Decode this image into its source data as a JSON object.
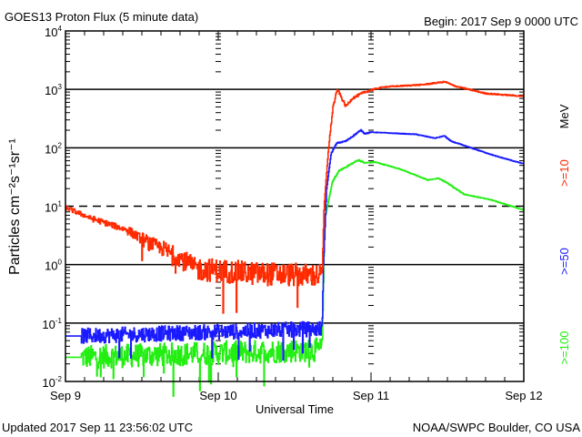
{
  "header": {
    "title": "GOES13 Proton Flux (5 minute data)",
    "begin": "Begin: 2017 Sep 9 0000 UTC"
  },
  "footer": {
    "updated": "Updated 2017 Sep 11 23:56:02 UTC",
    "credit": "NOAA/SWPC Boulder, CO USA"
  },
  "chart_data": {
    "type": "line",
    "title": "GOES13 Proton Flux (5 minute data)",
    "xlabel": "Universal Time",
    "ylabel": "Particles cm⁻²s⁻¹sr⁻¹",
    "x_units": "hours since 2017 Sep 9 0000 UTC",
    "xlim": [
      0,
      72
    ],
    "ylim": [
      0.01,
      10000
    ],
    "yscale": "log",
    "x_ticks": [
      {
        "hour": 0,
        "label": "Sep 9"
      },
      {
        "hour": 24,
        "label": "Sep 10"
      },
      {
        "hour": 48,
        "label": "Sep 11"
      },
      {
        "hour": 72,
        "label": "Sep 12"
      }
    ],
    "y_ticks": [
      {
        "value": 10000,
        "base": "10",
        "exp": "4"
      },
      {
        "value": 1000,
        "base": "10",
        "exp": "3"
      },
      {
        "value": 100,
        "base": "10",
        "exp": "2"
      },
      {
        "value": 10,
        "base": "10",
        "exp": "1"
      },
      {
        "value": 1,
        "base": "10",
        "exp": "0"
      },
      {
        "value": 0.1,
        "base": "10",
        "exp": "-1"
      },
      {
        "value": 0.01,
        "base": "10",
        "exp": "-2"
      }
    ],
    "gridlines": {
      "solid": [
        1000,
        100,
        1,
        0.1
      ],
      "dashed": [
        10
      ]
    },
    "unit_label": "MeV",
    "legend_placement": "right",
    "series": [
      {
        "name": ">=10",
        "color": "#ff2a00",
        "points": [
          [
            0,
            9.5,
            0.04
          ],
          [
            4,
            6.2,
            0.05
          ],
          [
            9.7,
            3.9,
            0.08
          ],
          [
            12,
            2.7,
            0.12
          ],
          [
            15.4,
            1.8,
            0.15
          ],
          [
            18,
            1.3,
            0.18
          ],
          [
            20.4,
            0.85,
            0.2
          ],
          [
            30,
            0.7,
            0.2
          ],
          [
            40.3,
            0.65,
            0
          ],
          [
            40.6,
            10,
            0
          ],
          [
            41.3,
            100,
            0.03
          ],
          [
            42,
            500,
            0.03
          ],
          [
            42.7,
            1000,
            0.02
          ],
          [
            44,
            510,
            0.02
          ],
          [
            45,
            700,
            0.02
          ],
          [
            47,
            900,
            0.02
          ],
          [
            48.3,
            1000,
            0.01
          ],
          [
            50,
            1100,
            0.01
          ],
          [
            53,
            1150,
            0.01
          ],
          [
            56,
            1200,
            0.01
          ],
          [
            59.6,
            1350,
            0.01
          ],
          [
            61,
            1150,
            0.01
          ],
          [
            63.3,
            1000,
            0.01
          ],
          [
            66,
            850,
            0.01
          ],
          [
            72,
            760,
            0
          ]
        ]
      },
      {
        "name": ">=50",
        "color": "#1a1aff",
        "points": [
          [
            0,
            0.06,
            0
          ],
          [
            2.5,
            0.06,
            0.13
          ],
          [
            40.3,
            0.08,
            0
          ],
          [
            40.5,
            1,
            0
          ],
          [
            41,
            20,
            0
          ],
          [
            41.7,
            80,
            0.01
          ],
          [
            42.6,
            120,
            0.01
          ],
          [
            44,
            130,
            0.01
          ],
          [
            46.4,
            200,
            0.01
          ],
          [
            47,
            175,
            0.01
          ],
          [
            48,
            185,
            0.005
          ],
          [
            55,
            170,
            0.005
          ],
          [
            58,
            146,
            0.005
          ],
          [
            59.5,
            160,
            0.005
          ],
          [
            60.5,
            130,
            0.005
          ],
          [
            62.5,
            110,
            0.005
          ],
          [
            67.6,
            72,
            0.005
          ],
          [
            72,
            53,
            0
          ]
        ]
      },
      {
        "name": ">=100",
        "color": "#22ee11",
        "points": [
          [
            0,
            0.026,
            0
          ],
          [
            2.5,
            0.026,
            0.2
          ],
          [
            40.3,
            0.035,
            0
          ],
          [
            40.5,
            0.5,
            0
          ],
          [
            40.7,
            6,
            0
          ],
          [
            41.9,
            26,
            0.01
          ],
          [
            42.9,
            40,
            0.01
          ],
          [
            46,
            62,
            0.01
          ],
          [
            47,
            55,
            0.01
          ],
          [
            48.6,
            57,
            0.005
          ],
          [
            52.6,
            43,
            0.005
          ],
          [
            56.9,
            28,
            0.005
          ],
          [
            58.5,
            30,
            0.005
          ],
          [
            59.7,
            26,
            0.005
          ],
          [
            62.6,
            16,
            0.005
          ],
          [
            66.9,
            12.8,
            0.005
          ],
          [
            72,
            8.6,
            0
          ]
        ]
      }
    ]
  }
}
